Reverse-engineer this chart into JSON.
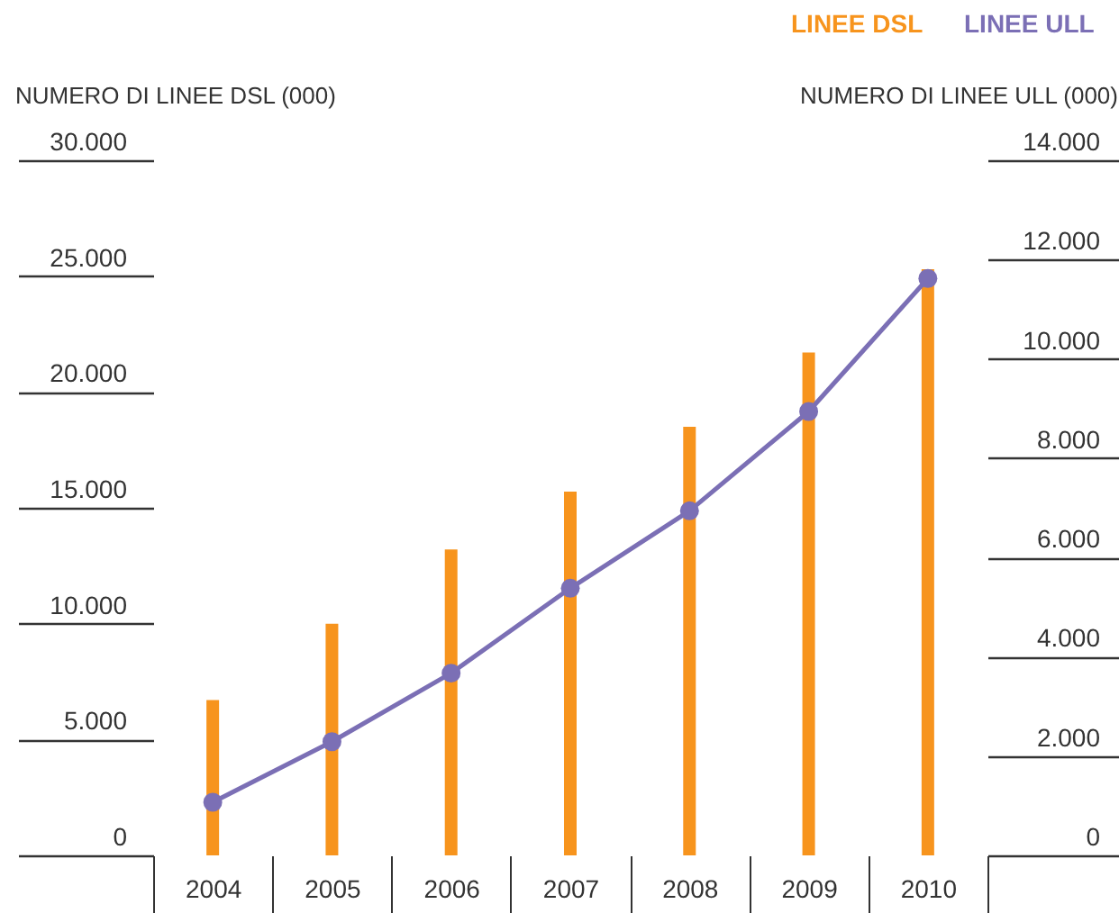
{
  "chart_data": {
    "type": "bar",
    "xlabel": null,
    "ylabel": "NUMERO DI LINEE DSL (000)",
    "y2label": "NUMERO DI LINEE ULL (000)",
    "categories": [
      "2004",
      "2005",
      "2006",
      "2007",
      "2008",
      "2009",
      "2010"
    ],
    "series": [
      {
        "name": "LINEE DSL",
        "color": "#f7941d",
        "values": [
          6700,
          10000,
          13200,
          15700,
          18500,
          21700,
          25300
        ]
      },
      {
        "name": "LINEE ULL",
        "type": "line",
        "axis": "y2",
        "color": "#7b6fb5",
        "values": [
          1070,
          2290,
          3670,
          5380,
          6940,
          8940,
          11620
        ]
      }
    ],
    "ylim": [
      0,
      30000
    ],
    "yticks": [
      {
        "value": 0,
        "label": "0"
      },
      {
        "value": 5000,
        "label": "5.000"
      },
      {
        "value": 10000,
        "label": "10.000"
      },
      {
        "value": 15000,
        "label": "15.000"
      },
      {
        "value": 20000,
        "label": "20.000"
      },
      {
        "value": 25000,
        "label": "25.000"
      },
      {
        "value": 30000,
        "label": "30.000"
      }
    ],
    "y2lim": [
      0,
      14000
    ],
    "y2ticks": [
      {
        "value": 0,
        "label": "0"
      },
      {
        "value": 2000,
        "label": "2.000"
      },
      {
        "value": 4000,
        "label": "4.000"
      },
      {
        "value": 6000,
        "label": "6.000"
      },
      {
        "value": 8000,
        "label": "8.000"
      },
      {
        "value": 10000,
        "label": "10.000"
      },
      {
        "value": 12000,
        "label": "12.000"
      },
      {
        "value": 14000,
        "label": "14.000"
      }
    ],
    "legend": "top right",
    "marker": "circle",
    "grid": false
  }
}
